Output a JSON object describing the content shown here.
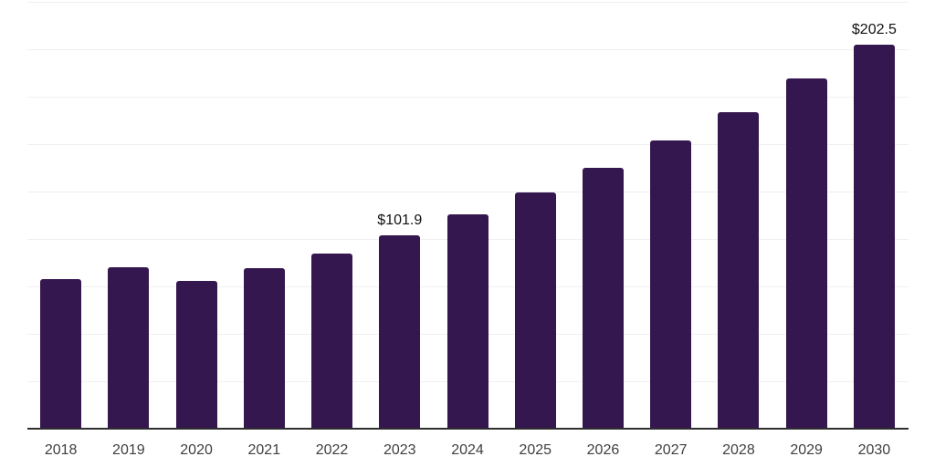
{
  "chart_data": {
    "type": "bar",
    "title": "",
    "xlabel": "",
    "ylabel": "",
    "categories": [
      "2018",
      "2019",
      "2020",
      "2021",
      "2022",
      "2023",
      "2024",
      "2025",
      "2026",
      "2027",
      "2028",
      "2029",
      "2030"
    ],
    "values": [
      78.7,
      84.8,
      77.6,
      84.5,
      92.4,
      101.9,
      112.8,
      124.3,
      137.2,
      151.7,
      166.6,
      184.4,
      202.5
    ],
    "value_labels": [
      {
        "category": "2023",
        "index": 5,
        "text": "$101.9"
      },
      {
        "category": "2030",
        "index": 12,
        "text": "$202.5"
      }
    ],
    "ylim": [
      0,
      225
    ],
    "gridline_step": 25,
    "grid": "horizontal-only",
    "y_axis_tick_labels_visible": false,
    "legend": "none",
    "colors": {
      "bar": "#35174f",
      "gridline": "#f0f0f0",
      "axis_line": "#2e2e2e",
      "x_tick_label": "#3f3f3f",
      "value_label": "#111111",
      "background": "#ffffff"
    }
  }
}
